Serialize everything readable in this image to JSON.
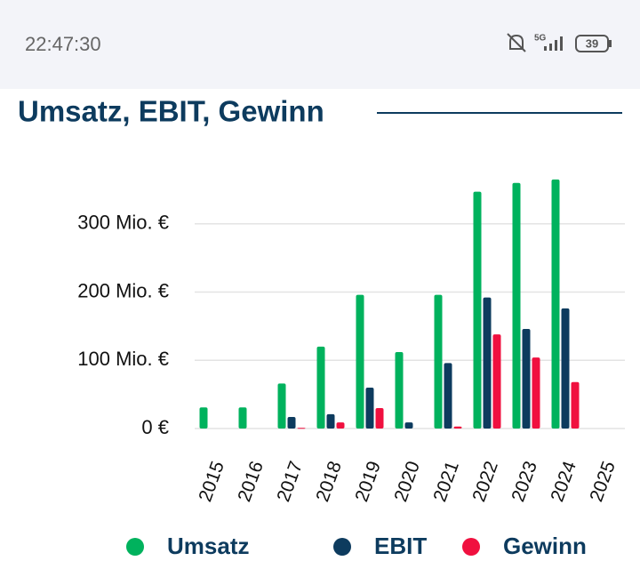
{
  "status_bar": {
    "time": "22:47:30",
    "network": "5G",
    "battery": "39"
  },
  "chart_data": {
    "type": "bar",
    "title": "Umsatz, EBIT, Gewinn",
    "categories": [
      "2015",
      "2016",
      "2017",
      "2018",
      "2019",
      "2020",
      "2021",
      "2022",
      "2023",
      "2024",
      "2025"
    ],
    "series": [
      {
        "name": "Umsatz",
        "color": "#00b25d",
        "values": [
          31,
          31,
          66,
          120,
          196,
          112,
          196,
          347,
          360,
          365,
          null
        ]
      },
      {
        "name": "EBIT",
        "color": "#0d3b5e",
        "values": [
          null,
          null,
          17,
          21,
          60,
          9,
          96,
          192,
          146,
          176,
          null
        ]
      },
      {
        "name": "Gewinn",
        "color": "#f0103f",
        "values": [
          null,
          null,
          1,
          9,
          30,
          null,
          3,
          138,
          104,
          68,
          null
        ]
      }
    ],
    "ylim": [
      0,
      400
    ],
    "yticks": [
      {
        "value": 0,
        "label": "0 €"
      },
      {
        "value": 100,
        "label": "100 Mio. €"
      },
      {
        "value": 200,
        "label": "200 Mio. €"
      },
      {
        "value": 300,
        "label": "300 Mio. €"
      }
    ],
    "grid": true,
    "legend": "bottom"
  }
}
